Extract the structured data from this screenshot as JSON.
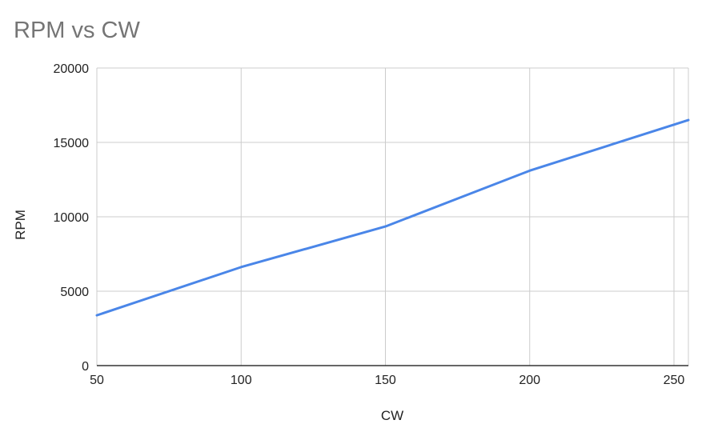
{
  "chart_data": {
    "type": "line",
    "title": "RPM vs CW",
    "xlabel": "CW",
    "ylabel": "RPM",
    "x": [
      50,
      100,
      150,
      200,
      255
    ],
    "series": [
      {
        "values": [
          3380,
          6620,
          9350,
          13100,
          16500
        ]
      }
    ],
    "xlim": [
      50,
      255
    ],
    "ylim": [
      0,
      20000
    ],
    "xticks": [
      50,
      100,
      150,
      200,
      250
    ],
    "yticks": [
      0,
      5000,
      10000,
      15000,
      20000
    ],
    "grid": true,
    "line_color": "#4a86e8",
    "grid_color": "#cccccc",
    "axis_color": "#333333",
    "text_color": "#222222",
    "title_color": "#757575"
  }
}
